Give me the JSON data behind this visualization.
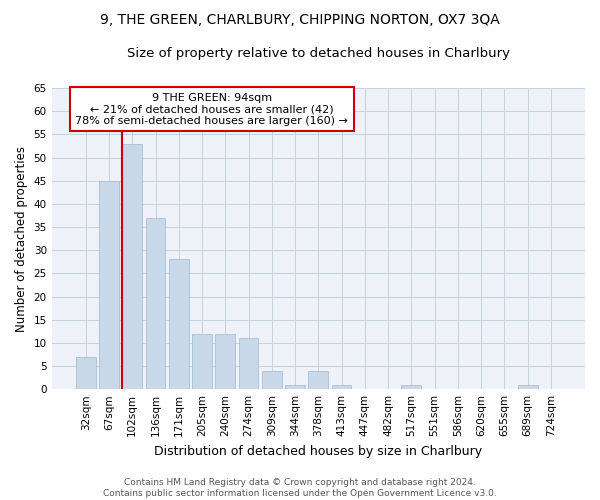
{
  "title": "9, THE GREEN, CHARLBURY, CHIPPING NORTON, OX7 3QA",
  "subtitle": "Size of property relative to detached houses in Charlbury",
  "xlabel": "Distribution of detached houses by size in Charlbury",
  "ylabel": "Number of detached properties",
  "categories": [
    "32sqm",
    "67sqm",
    "102sqm",
    "136sqm",
    "171sqm",
    "205sqm",
    "240sqm",
    "274sqm",
    "309sqm",
    "344sqm",
    "378sqm",
    "413sqm",
    "447sqm",
    "482sqm",
    "517sqm",
    "551sqm",
    "586sqm",
    "620sqm",
    "655sqm",
    "689sqm",
    "724sqm"
  ],
  "values": [
    7,
    45,
    53,
    37,
    28,
    12,
    12,
    11,
    4,
    1,
    4,
    1,
    0,
    0,
    1,
    0,
    0,
    0,
    0,
    1,
    0
  ],
  "bar_color": "#c8d8e8",
  "bar_edge_color": "#a0b8d0",
  "vline_color": "#cc0000",
  "annotation_text": "9 THE GREEN: 94sqm\n← 21% of detached houses are smaller (42)\n78% of semi-detached houses are larger (160) →",
  "annotation_box_color": "#ffffff",
  "annotation_box_edge": "#cc0000",
  "ylim": [
    0,
    65
  ],
  "yticks": [
    0,
    5,
    10,
    15,
    20,
    25,
    30,
    35,
    40,
    45,
    50,
    55,
    60,
    65
  ],
  "background_color": "#eef2f8",
  "grid_color": "#c8d0dc",
  "footer": "Contains HM Land Registry data © Crown copyright and database right 2024.\nContains public sector information licensed under the Open Government Licence v3.0.",
  "title_fontsize": 10,
  "subtitle_fontsize": 9.5,
  "xlabel_fontsize": 9,
  "ylabel_fontsize": 8.5,
  "tick_fontsize": 7.5,
  "footer_fontsize": 6.5,
  "annotation_fontsize": 8
}
